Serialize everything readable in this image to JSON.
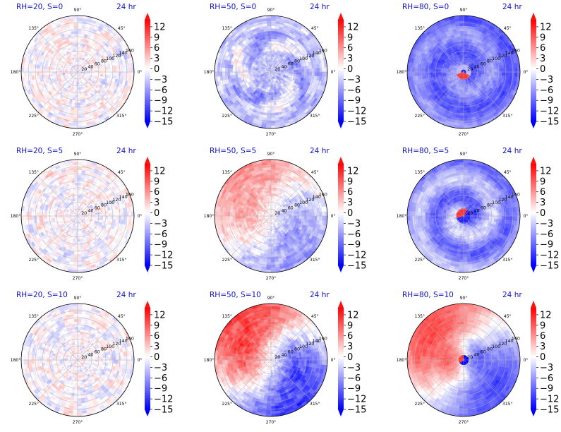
{
  "colors": {
    "title": "#1010cc",
    "positive": "#ff0000",
    "negative": "#0000ff",
    "neutral": "#ffffff",
    "grid": "#b0b0b0"
  },
  "colorbar": {
    "tick_labels": [
      "12",
      "9",
      "6",
      "3",
      "0",
      "−3",
      "−6",
      "−9",
      "−12",
      "−15"
    ],
    "range": [
      -15,
      14
    ],
    "extend": "both",
    "colormap": "bwr"
  },
  "polar_axes": {
    "angle_labels": [
      "90°",
      "45°",
      "0°",
      "315°",
      "270°",
      "225°",
      "180°",
      "135°"
    ],
    "radius_labels": [
      "20",
      "40",
      "60",
      "80",
      "100",
      "120",
      "140",
      "160"
    ],
    "radial_label_angle_deg": 22.5
  },
  "chart_data": [
    {
      "type": "heatmap",
      "projection": "polar",
      "title": "RH=20, S=0",
      "time_label": "24 hr",
      "rh": 20,
      "s": 0
    },
    {
      "type": "heatmap",
      "projection": "polar",
      "title": "RH=50, S=0",
      "time_label": "24 hr",
      "rh": 50,
      "s": 0
    },
    {
      "type": "heatmap",
      "projection": "polar",
      "title": "RH=80, S=0",
      "time_label": "24 hr",
      "rh": 80,
      "s": 0
    },
    {
      "type": "heatmap",
      "projection": "polar",
      "title": "RH=20, S=5",
      "time_label": "24 hr",
      "rh": 20,
      "s": 5
    },
    {
      "type": "heatmap",
      "projection": "polar",
      "title": "RH=50, S=5",
      "time_label": "24 hr",
      "rh": 50,
      "s": 5
    },
    {
      "type": "heatmap",
      "projection": "polar",
      "title": "RH=80, S=5",
      "time_label": "24 hr",
      "rh": 80,
      "s": 5
    },
    {
      "type": "heatmap",
      "projection": "polar",
      "title": "RH=20, S=10",
      "time_label": "24 hr",
      "rh": 20,
      "s": 10
    },
    {
      "type": "heatmap",
      "projection": "polar",
      "title": "RH=50, S=10",
      "time_label": "24 hr",
      "rh": 50,
      "s": 10
    },
    {
      "type": "heatmap",
      "projection": "polar",
      "title": "RH=80, S=10",
      "time_label": "24 hr",
      "rh": 80,
      "s": 10
    }
  ]
}
